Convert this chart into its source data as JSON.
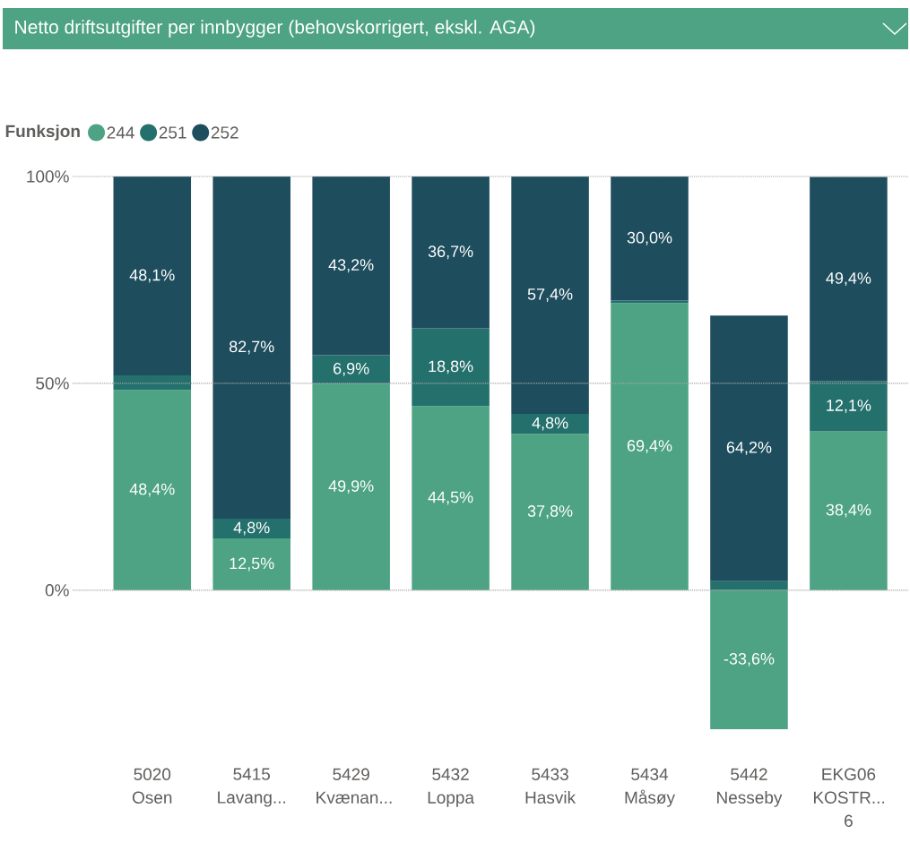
{
  "chart_data": {
    "type": "bar",
    "title": "Netto driftsutgifter per innbygger (behovskorrigert, ekskl. AGA)",
    "legend_title": "Funksjon",
    "categories": [
      "5020 Osen",
      "5415 Lavang...",
      "5429 Kvænan...",
      "5432 Loppa",
      "5433 Hasvik",
      "5434 Måsøy",
      "5442 Nesseby",
      "EKG06 KOSTR... 6"
    ],
    "series": [
      {
        "name": "244",
        "color": "#4da384",
        "values": [
          48.4,
          12.5,
          49.9,
          44.5,
          37.8,
          69.4,
          -33.6,
          38.4
        ],
        "value_labels": [
          "48,4%",
          "12,5%",
          "49,9%",
          "44,5%",
          "37,8%",
          "69,4%",
          "-33,6%",
          "38,4%"
        ]
      },
      {
        "name": "251",
        "color": "#24706c",
        "values": [
          3.5,
          4.8,
          6.9,
          18.8,
          4.8,
          0.6,
          2.2,
          12.1
        ],
        "value_labels": [
          null,
          "4,8%",
          "6,9%",
          "18,8%",
          "4,8%",
          null,
          null,
          "12,1%"
        ]
      },
      {
        "name": "252",
        "color": "#1e4d5e",
        "values": [
          48.1,
          82.7,
          43.2,
          36.7,
          57.4,
          30.0,
          64.2,
          49.4
        ],
        "value_labels": [
          "48,1%",
          "82,7%",
          "43,2%",
          "36,7%",
          "57,4%",
          "30,0%",
          "64,2%",
          "49,4%"
        ]
      }
    ],
    "stacked": true,
    "ylim": [
      -33.6,
      100
    ],
    "yticks": [
      {
        "value": 0,
        "label": "0%"
      },
      {
        "value": 50,
        "label": "50%"
      },
      {
        "value": 100,
        "label": "100%"
      }
    ],
    "grid": "y",
    "legend": "top left"
  }
}
